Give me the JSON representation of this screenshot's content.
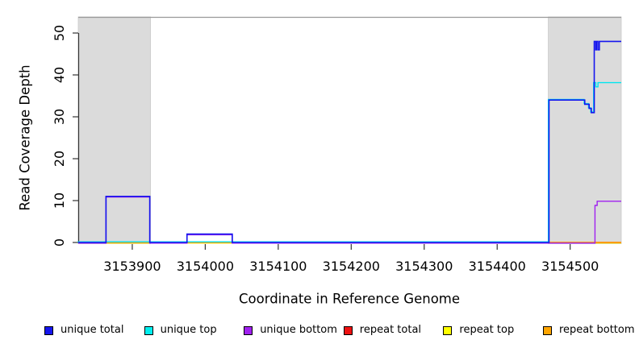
{
  "chart_data": {
    "type": "line",
    "subtype": "step-coverage",
    "title": "",
    "xlabel": "Coordinate in Reference Genome",
    "ylabel": "Read Coverage Depth",
    "x_range": [
      3153826,
      3154570
    ],
    "y_range": [
      0,
      52
    ],
    "x_ticks": [
      3153900,
      3154000,
      3154100,
      3154200,
      3154300,
      3154400,
      3154500
    ],
    "y_ticks": [
      0,
      10,
      20,
      30,
      40,
      50
    ],
    "grid": false,
    "legend_position": "bottom",
    "mask_color": "#DBDBDB",
    "mask_border_color": "#999999",
    "masked_regions": [
      [
        3153826,
        3153925
      ],
      [
        3154470,
        3154570
      ]
    ],
    "series": [
      {
        "name": "repeat top",
        "color": "#FFFF00",
        "steps": [
          [
            3153826,
            0
          ]
        ]
      },
      {
        "name": "repeat total",
        "color": "#EE1111",
        "steps": [
          [
            3153826,
            0
          ]
        ]
      },
      {
        "name": "repeat bottom",
        "color": "#FFA500",
        "steps": [
          [
            3153826,
            0
          ]
        ]
      },
      {
        "name": "unique top",
        "color": "#00E6EF",
        "steps": [
          [
            3153826,
            0
          ],
          [
            3154471,
            34
          ],
          [
            3154520,
            33
          ],
          [
            3154526,
            32
          ],
          [
            3154529,
            31
          ],
          [
            3154533,
            38
          ],
          [
            3154536,
            37
          ],
          [
            3154539,
            38
          ]
        ]
      },
      {
        "name": "unique bottom",
        "color": "#A020F0",
        "steps": [
          [
            3153826,
            0
          ],
          [
            3153864,
            11
          ],
          [
            3153924,
            0
          ],
          [
            3153975,
            2
          ],
          [
            3154037,
            0
          ],
          [
            3154534,
            9
          ],
          [
            3154537,
            10
          ]
        ]
      },
      {
        "name": "unique total",
        "color": "#1515EE",
        "steps": [
          [
            3153826,
            0
          ],
          [
            3153864,
            11
          ],
          [
            3153924,
            0
          ],
          [
            3153975,
            2
          ],
          [
            3154037,
            0
          ],
          [
            3154471,
            34
          ],
          [
            3154520,
            33
          ],
          [
            3154526,
            32
          ],
          [
            3154529,
            31
          ],
          [
            3154533,
            48
          ],
          [
            3154535,
            46
          ],
          [
            3154536,
            48
          ],
          [
            3154538,
            46
          ],
          [
            3154540,
            48
          ]
        ]
      }
    ],
    "legend": [
      {
        "label": "unique total",
        "color": "#1515EE"
      },
      {
        "label": "unique top",
        "color": "#00EFEF"
      },
      {
        "label": "unique bottom",
        "color": "#A020F0"
      },
      {
        "label": "repeat total",
        "color": "#EE1111"
      },
      {
        "label": "repeat top",
        "color": "#FFFF00"
      },
      {
        "label": "repeat bottom",
        "color": "#FFA500"
      }
    ]
  }
}
